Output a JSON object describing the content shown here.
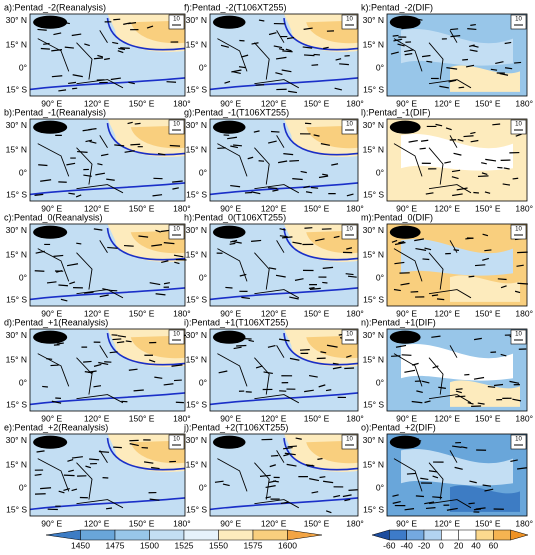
{
  "panels": [
    {
      "title": "a):Pentad_-2(Reanalysis)"
    },
    {
      "title": "f):Pentad_-2(T106XT255)"
    },
    {
      "title": "k):Pentad_-2(DIF)"
    },
    {
      "title": "b):Pentad_-1(Reanalysis)"
    },
    {
      "title": "g):Pentad_-1(T106XT255)"
    },
    {
      "title": "l):Pentad_-1(DIF)"
    },
    {
      "title": "c):Pentad_0(Reanalysis)"
    },
    {
      "title": "h):Pentad_0(T106XT255)"
    },
    {
      "title": "m):Pentad_0(DIF)"
    },
    {
      "title": "d):Pentad_+1(Reanalysis)"
    },
    {
      "title": "i):Pentad_+1(T106XT255)"
    },
    {
      "title": "n):Pentad_+1(DIF)"
    },
    {
      "title": "e):Pentad_+2(Reanalysis)"
    },
    {
      "title": "j):Pentad_+2(T106XT255)"
    },
    {
      "title": "o):Pentad_+2(DIF)"
    }
  ],
  "lat_labels": [
    "30° N",
    "15° N",
    "0°",
    "15° S"
  ],
  "lon_labels": [
    "90° E",
    "120° E",
    "150° E",
    "180°"
  ],
  "ref_vector": 10,
  "colorbars": [
    {
      "ticks": [
        1450,
        1475,
        1500,
        1525,
        1550,
        1575,
        1600
      ],
      "colors": [
        "#3d7cc4",
        "#69a6da",
        "#98c6e9",
        "#c3def3",
        "#e6f2fb",
        "#fdebbd",
        "#f9cf7e",
        "#f2a444"
      ]
    },
    {
      "ticks": [
        -60,
        -40,
        -20,
        0,
        20,
        40,
        60
      ],
      "colors": [
        "#1d4d9e",
        "#3d7bc9",
        "#74a9e0",
        "#b2d3f1",
        "#ffffff",
        "#ffffff",
        "#fcd98e",
        "#f6b451",
        "#ee9225"
      ]
    }
  ]
}
